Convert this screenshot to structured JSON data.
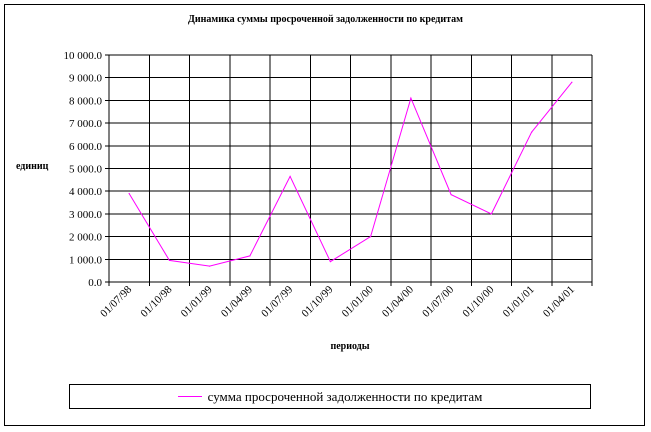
{
  "chart_data": {
    "type": "line",
    "title": "Динамика суммы просроченной задолженности по кредитам",
    "xlabel": "периоды",
    "ylabel": "единиц",
    "ylim": [
      0,
      10000
    ],
    "y_ticks": [
      "0.0",
      "1 000.0",
      "2 000.0",
      "3 000.0",
      "4 000.0",
      "5 000.0",
      "6 000.0",
      "7 000.0",
      "8 000.0",
      "9 000.0",
      "10 000.0"
    ],
    "y_tick_values": [
      0,
      1000,
      2000,
      3000,
      4000,
      5000,
      6000,
      7000,
      8000,
      9000,
      10000
    ],
    "categories": [
      "01/07/98",
      "01/10/98",
      "01/01/99",
      "01/04/99",
      "01/07/99",
      "01/10/99",
      "01/01/00",
      "01/04/00",
      "01/07/00",
      "01/10/00",
      "01/01/01",
      "01/04/01"
    ],
    "series": [
      {
        "name": "сумма просроченной задолженности по кредитам",
        "color": "#ff00ff",
        "values": [
          3900,
          950,
          700,
          1150,
          4650,
          900,
          2000,
          8100,
          3850,
          3000,
          6600,
          8800
        ]
      }
    ],
    "grid": true,
    "legend": "bottom"
  }
}
